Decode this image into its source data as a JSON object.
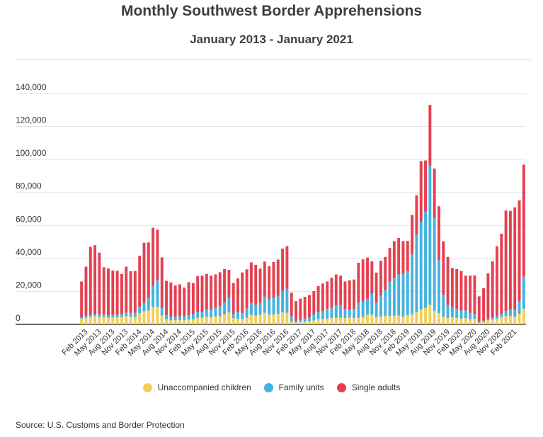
{
  "chart_data": {
    "type": "bar",
    "stacked": true,
    "title": "Monthly Southwest Border Apprehensions",
    "subtitle": "January 2013 - January 2021",
    "source": "Source: U.S. Customs and Border Protection",
    "ylim": [
      0,
      140000
    ],
    "yticks": [
      0,
      20000,
      40000,
      60000,
      80000,
      100000,
      120000,
      140000
    ],
    "ytick_labels": [
      "0",
      "20,000",
      "40,000",
      "60,000",
      "80,000",
      "100,000",
      "120,000",
      "140,000"
    ],
    "xtick_labels": [
      "Feb 2013",
      "May 2013",
      "Aug 2013",
      "Nov 2013",
      "Feb 2014",
      "May 2014",
      "Aug 2014",
      "Nov 2014",
      "Feb 2015",
      "May 2015",
      "Aug 2015",
      "Nov 2015",
      "Feb 2016",
      "May 2016",
      "Aug 2016",
      "Nov 2016",
      "Feb 2017",
      "May 2017",
      "Aug 2017",
      "Nov 2017",
      "Feb 2018",
      "May 2018",
      "Aug 2018",
      "Nov 2018",
      "Feb 2019",
      "May 2019",
      "Aug 2019",
      "Nov 2019",
      "Feb 2020",
      "May 2020",
      "Aug 2020",
      "Nov 2020",
      "Feb 2021"
    ],
    "legend_position": "bottom-center",
    "grid": true,
    "series": [
      {
        "name": "Unaccompanied children",
        "color": "#f2cf59",
        "values": [
          3500,
          4000,
          4500,
          5000,
          4500,
          4500,
          4000,
          4200,
          4300,
          4500,
          5000,
          4700,
          4600,
          6800,
          8000,
          8500,
          10500,
          10600,
          5400,
          3100,
          2400,
          2500,
          2500,
          2500,
          2900,
          3100,
          4100,
          4100,
          4600,
          4200,
          4800,
          5000,
          6200,
          7200,
          3800,
          3300,
          3100,
          4100,
          5800,
          5300,
          5700,
          7000,
          5900,
          6000,
          6300,
          7300,
          7000,
          1700,
          1000,
          1200,
          1600,
          2000,
          2400,
          3100,
          3200,
          3500,
          3800,
          4000,
          4100,
          3800,
          4100,
          3800,
          4000,
          4500,
          6000,
          5900,
          4500,
          4800,
          5100,
          5000,
          5200,
          5400,
          4700,
          5500,
          6100,
          7200,
          9100,
          10000,
          11900,
          8200,
          6800,
          4500,
          3900,
          4300,
          4000,
          3500,
          3700,
          3100,
          3300,
          1000,
          1600,
          2500,
          2900,
          3500,
          4500,
          5000,
          5000,
          4700,
          6400,
          9500
        ]
      },
      {
        "name": "Family units",
        "color": "#45b3e0",
        "values": [
          1000,
          1200,
          1300,
          1400,
          1400,
          1400,
          1400,
          1500,
          1600,
          1700,
          2000,
          2200,
          2500,
          4000,
          5000,
          7700,
          12800,
          16300,
          4600,
          2600,
          2400,
          2100,
          2300,
          2400,
          2600,
          3100,
          3500,
          3600,
          4600,
          4800,
          5300,
          6000,
          7000,
          9000,
          2500,
          4200,
          3800,
          5500,
          7200,
          6500,
          7300,
          9800,
          9400,
          10200,
          11000,
          13000,
          14700,
          3300,
          1100,
          1600,
          1900,
          2200,
          3800,
          4300,
          4800,
          6000,
          6500,
          7500,
          7700,
          5500,
          4700,
          5500,
          9400,
          9300,
          9500,
          12600,
          8600,
          12800,
          15800,
          21000,
          23000,
          25000,
          26000,
          26800,
          36300,
          47100,
          53200,
          58400,
          84500,
          56300,
          32200,
          13500,
          7900,
          5900,
          5500,
          4900,
          4800,
          3800,
          2900,
          700,
          700,
          900,
          1200,
          1400,
          1900,
          3000,
          4000,
          4200,
          7800,
          19400
        ]
      },
      {
        "name": "Single adults",
        "color": "#e64050",
        "values": [
          21500,
          29800,
          41200,
          41600,
          37600,
          28700,
          28500,
          27000,
          26600,
          24400,
          28000,
          25400,
          25300,
          30800,
          36500,
          33500,
          35300,
          30500,
          30600,
          20700,
          20700,
          19000,
          19500,
          17400,
          20100,
          18900,
          21600,
          21800,
          21400,
          20600,
          20200,
          20600,
          20300,
          16900,
          18800,
          20400,
          24600,
          23800,
          24600,
          24300,
          20800,
          21300,
          20000,
          21600,
          22000,
          25600,
          25700,
          14200,
          12000,
          12800,
          13200,
          13500,
          14000,
          15800,
          16800,
          16500,
          18000,
          18800,
          17800,
          16700,
          17900,
          17900,
          24000,
          25600,
          25000,
          19700,
          18300,
          21000,
          20000,
          20300,
          22300,
          22000,
          19800,
          18300,
          24000,
          24000,
          36800,
          31000,
          36700,
          30000,
          32600,
          32400,
          29100,
          24000,
          24000,
          24000,
          21000,
          22700,
          23500,
          15300,
          19600,
          27600,
          34100,
          42500,
          48600,
          61000,
          59800,
          62100,
          61000,
          68000
        ]
      }
    ]
  },
  "legend": {
    "items": [
      {
        "label": "Unaccompanied children",
        "color": "#f2cf59"
      },
      {
        "label": "Family units",
        "color": "#45b3e0"
      },
      {
        "label": "Single adults",
        "color": "#e64050"
      }
    ]
  }
}
